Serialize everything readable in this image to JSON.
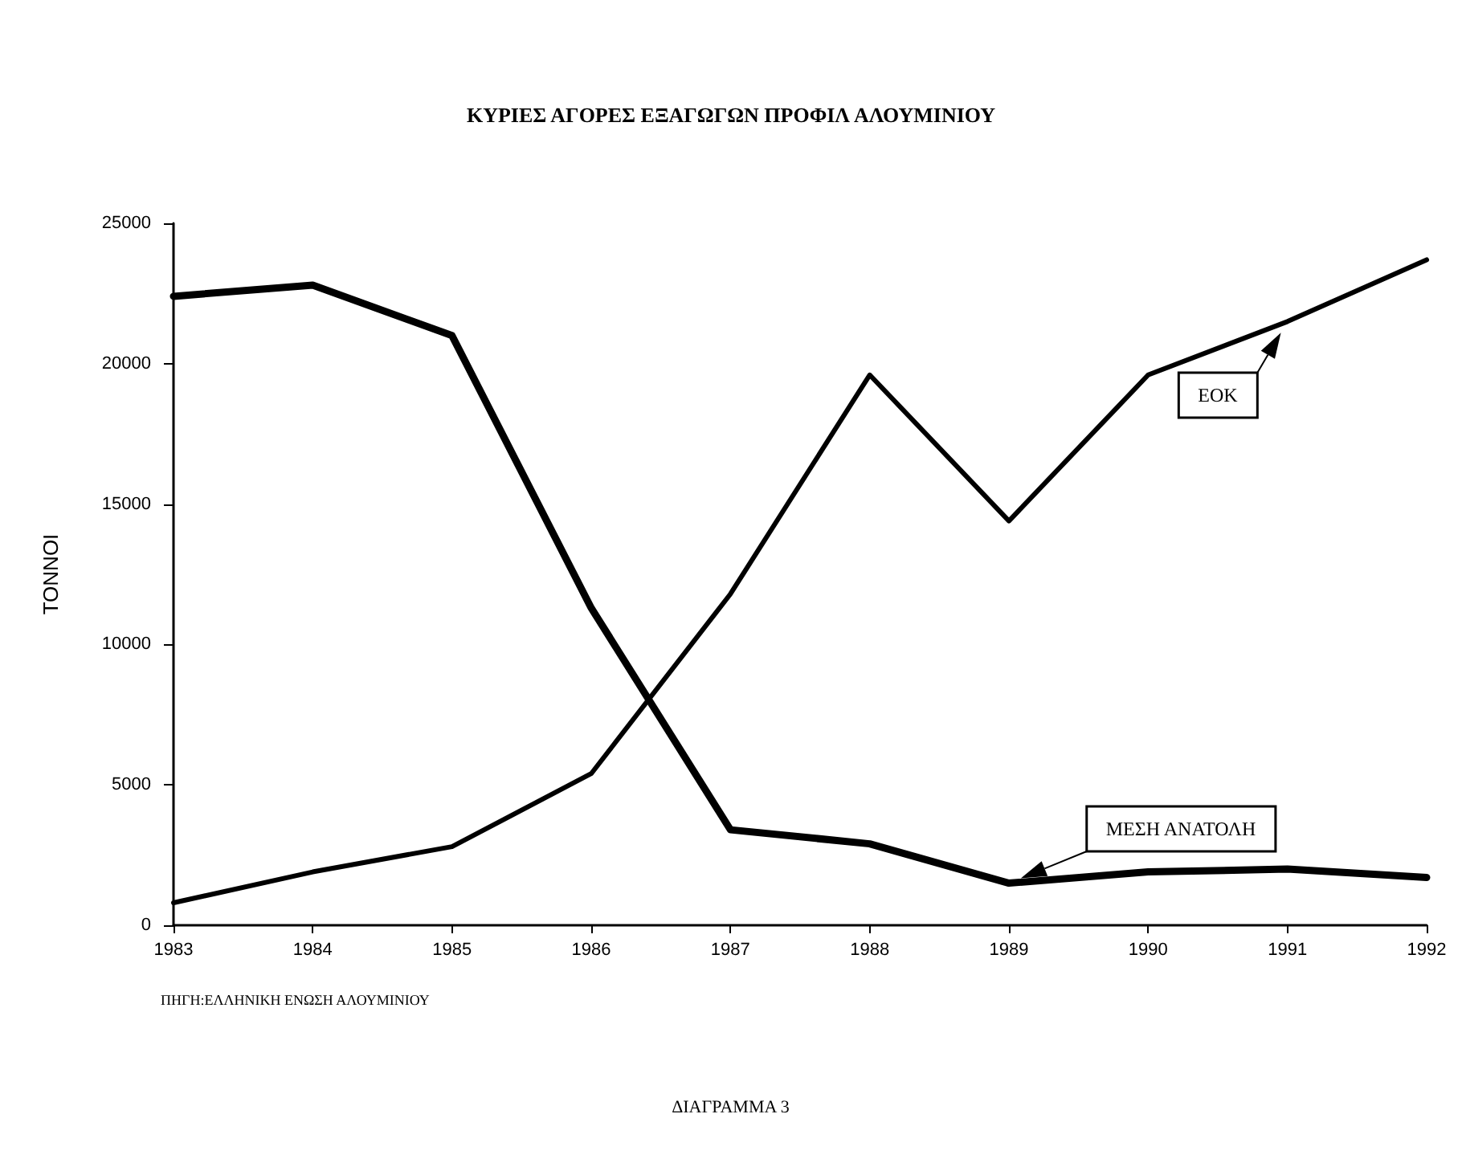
{
  "chart_data": {
    "type": "line",
    "title": "ΚΥΡΙΕΣ ΑΓΟΡΕΣ ΕΞΑΓΩΓΩΝ ΠΡΟΦΙΛ ΑΛΟΥΜΙΝΙΟΥ",
    "ylabel": "ΤΟΝΝΟΙ",
    "categories": [
      "1983",
      "1984",
      "1985",
      "1986",
      "1987",
      "1988",
      "1989",
      "1990",
      "1991",
      "1992"
    ],
    "series": [
      {
        "name": "ΕΟΚ",
        "color": "#000000",
        "values": [
          800,
          1900,
          2800,
          5400,
          11800,
          19600,
          14400,
          19600,
          21500,
          23700
        ]
      },
      {
        "name": "ΜΕΣΗ ΑΝΑΤΟΛΗ",
        "color": "#000000",
        "values": [
          22400,
          22800,
          21000,
          11300,
          3400,
          2900,
          1500,
          1900,
          2000,
          1700
        ]
      }
    ],
    "ylim": [
      0,
      25000
    ],
    "yticks": [
      0,
      5000,
      10000,
      15000,
      20000,
      25000
    ],
    "annotations": [
      "ΠΗΓΗ:ΕΛΛΗΝΙΚΗ ΕΝΩΣΗ ΑΛΟΥΜΙΝΙΟΥ",
      "ΔΙΑΓΡΑΜΜΑ 3"
    ],
    "grid": false,
    "legend": false,
    "marker": "none",
    "line_style": "solid"
  }
}
